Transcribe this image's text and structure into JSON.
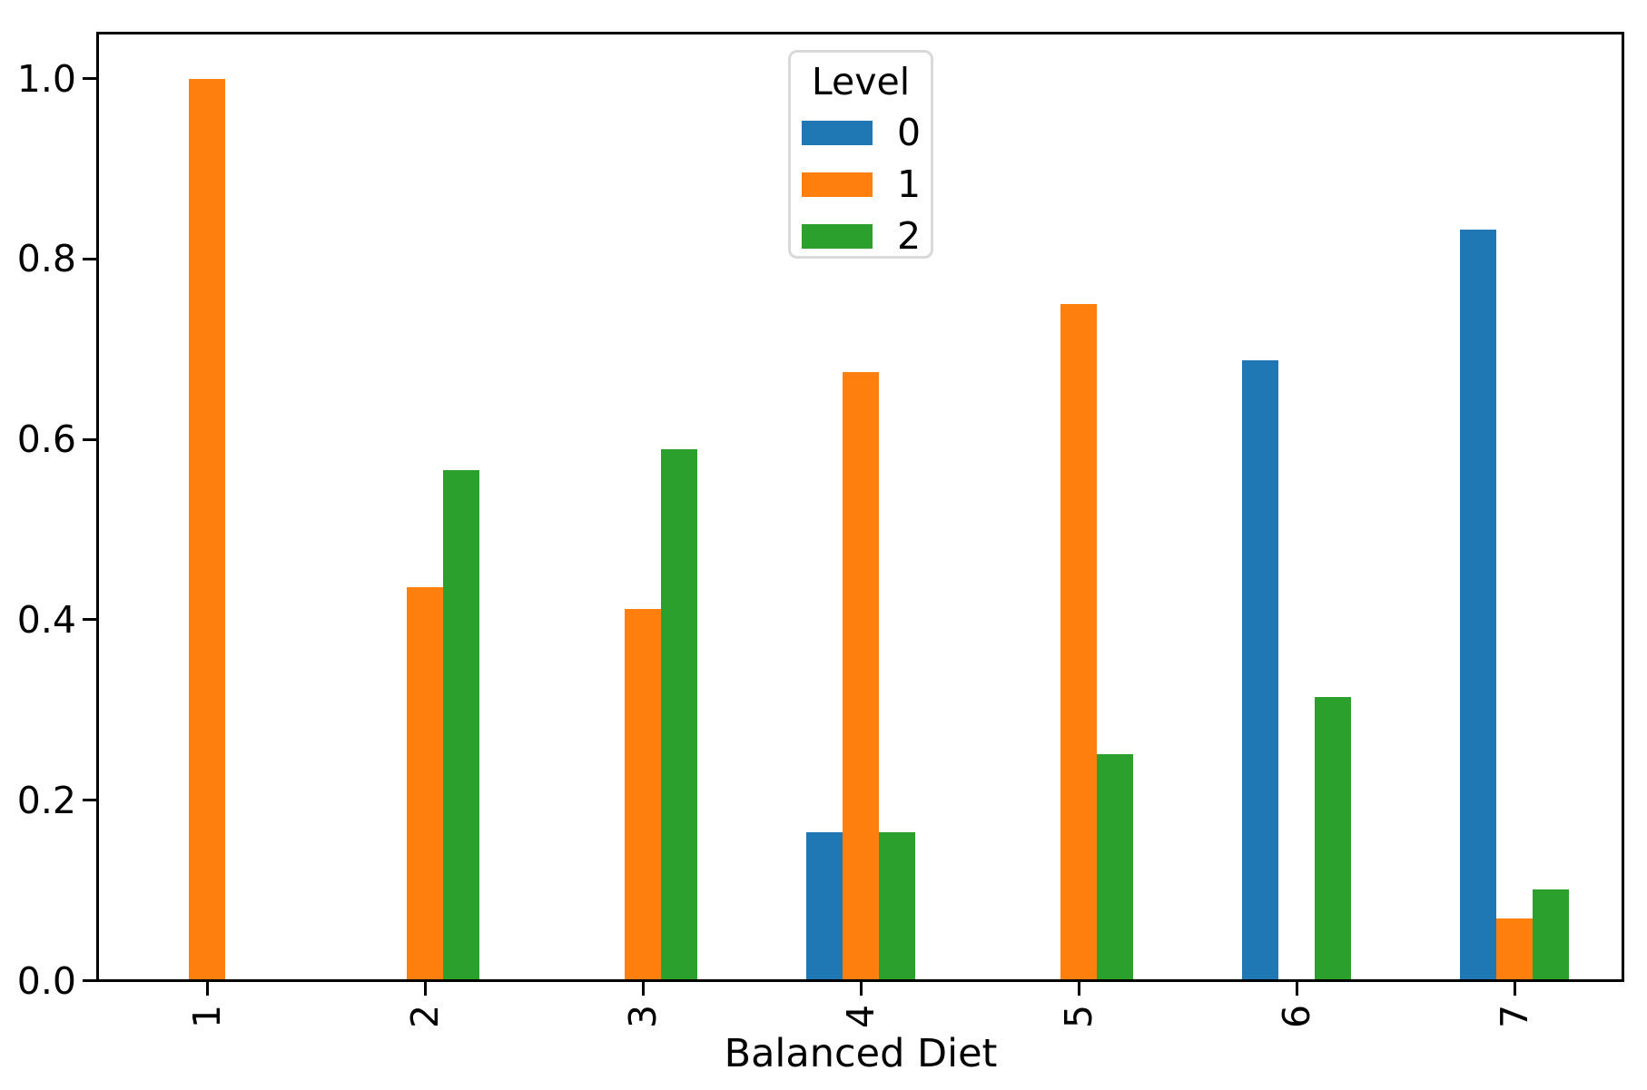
{
  "chart_data": {
    "type": "bar",
    "title": "",
    "xlabel": "Balanced Diet",
    "ylabel": "",
    "categories": [
      "1",
      "2",
      "3",
      "4",
      "5",
      "6",
      "7"
    ],
    "series": [
      {
        "name": "0",
        "color": "#1f77b4",
        "values": [
          0,
          0,
          0,
          0.165,
          0,
          0.688,
          0.833
        ]
      },
      {
        "name": "1",
        "color": "#ff7f0e",
        "values": [
          1.0,
          0.437,
          0.412,
          0.675,
          0.751,
          0,
          0.069
        ]
      },
      {
        "name": "2",
        "color": "#2ca02c",
        "values": [
          0,
          0.566,
          0.59,
          0.165,
          0.252,
          0.315,
          0.102
        ]
      }
    ],
    "legend": {
      "title": "Level",
      "entries": [
        "0",
        "1",
        "2"
      ],
      "position": "upper center"
    },
    "ylim": [
      0,
      1.05
    ],
    "yticks": {
      "labels": [
        "0.0",
        "0.2",
        "0.4",
        "0.6",
        "0.8",
        "1.0"
      ],
      "values": [
        0,
        0.2,
        0.4,
        0.6,
        0.8,
        1.0
      ]
    },
    "grid": false
  },
  "colors": {
    "axis": "#000000",
    "background": "#ffffff",
    "legend_border": "#d9d9d9",
    "text": "#000000"
  }
}
